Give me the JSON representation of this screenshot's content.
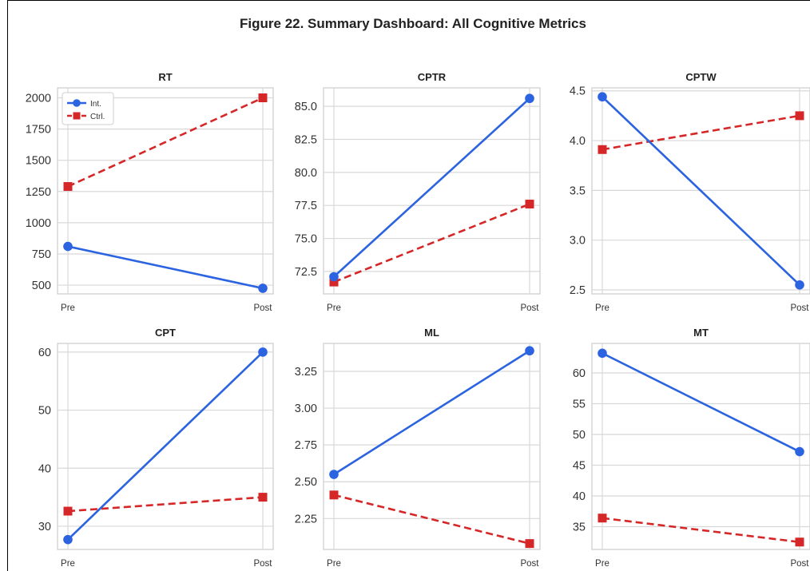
{
  "figure": {
    "title": "Figure 22. Summary Dashboard: All Cognitive Metrics"
  },
  "colors": {
    "intervention": "#2b63e0",
    "control": "#d62728",
    "grid": "#d8d8d8",
    "axis": "#cccccc"
  },
  "chart_data": [
    {
      "type": "line",
      "title": "RT",
      "categories": [
        "Pre",
        "Post"
      ],
      "ylim": [
        430,
        2080
      ],
      "yticks": [
        500,
        750,
        1000,
        1250,
        1500,
        1750,
        2000
      ],
      "ytick_labels": [
        "500",
        "750",
        "1000",
        "1250",
        "1500",
        "1750",
        "2000"
      ],
      "legend": {
        "placement": "upper-left",
        "entries": [
          "Int.",
          "Ctrl."
        ]
      },
      "series": [
        {
          "name": "Int.",
          "style": "solid-circle",
          "values": [
            810,
            475
          ]
        },
        {
          "name": "Ctrl.",
          "style": "dashed-square",
          "values": [
            1290,
            2000
          ]
        }
      ]
    },
    {
      "type": "line",
      "title": "CPTR",
      "categories": [
        "Pre",
        "Post"
      ],
      "ylim": [
        70.8,
        86.4
      ],
      "yticks": [
        72.5,
        75.0,
        77.5,
        80.0,
        82.5,
        85.0
      ],
      "ytick_labels": [
        "72.5",
        "75.0",
        "77.5",
        "80.0",
        "82.5",
        "85.0"
      ],
      "series": [
        {
          "name": "Int.",
          "style": "solid-circle",
          "values": [
            72.1,
            85.6
          ]
        },
        {
          "name": "Ctrl.",
          "style": "dashed-square",
          "values": [
            71.7,
            77.6
          ]
        }
      ]
    },
    {
      "type": "line",
      "title": "CPTW",
      "categories": [
        "Pre",
        "Post"
      ],
      "ylim": [
        2.46,
        4.53
      ],
      "yticks": [
        2.5,
        3.0,
        3.5,
        4.0,
        4.5
      ],
      "ytick_labels": [
        "2.5",
        "3.0",
        "3.5",
        "4.0",
        "4.5"
      ],
      "series": [
        {
          "name": "Int.",
          "style": "solid-circle",
          "values": [
            4.44,
            2.55
          ]
        },
        {
          "name": "Ctrl.",
          "style": "dashed-square",
          "values": [
            3.91,
            4.25
          ]
        }
      ]
    },
    {
      "type": "line",
      "title": "CPT",
      "categories": [
        "Pre",
        "Post"
      ],
      "ylim": [
        26.0,
        61.5
      ],
      "yticks": [
        30,
        40,
        50,
        60
      ],
      "ytick_labels": [
        "30",
        "40",
        "50",
        "60"
      ],
      "series": [
        {
          "name": "Int.",
          "style": "solid-circle",
          "values": [
            27.7,
            60.0
          ]
        },
        {
          "name": "Ctrl.",
          "style": "dashed-square",
          "values": [
            32.6,
            35.0
          ]
        }
      ]
    },
    {
      "type": "line",
      "title": "ML",
      "categories": [
        "Pre",
        "Post"
      ],
      "ylim": [
        2.04,
        3.44
      ],
      "yticks": [
        2.25,
        2.5,
        2.75,
        3.0,
        3.25
      ],
      "ytick_labels": [
        "2.25",
        "2.50",
        "2.75",
        "3.00",
        "3.25"
      ],
      "series": [
        {
          "name": "Int.",
          "style": "solid-circle",
          "values": [
            2.55,
            3.39
          ]
        },
        {
          "name": "Ctrl.",
          "style": "dashed-square",
          "values": [
            2.41,
            2.08
          ]
        }
      ]
    },
    {
      "type": "line",
      "title": "MT",
      "categories": [
        "Pre",
        "Post"
      ],
      "ylim": [
        31.3,
        64.8
      ],
      "yticks": [
        35,
        40,
        45,
        50,
        55,
        60
      ],
      "ytick_labels": [
        "35",
        "40",
        "45",
        "50",
        "55",
        "60"
      ],
      "series": [
        {
          "name": "Int.",
          "style": "solid-circle",
          "values": [
            63.2,
            47.2
          ]
        },
        {
          "name": "Ctrl.",
          "style": "dashed-square",
          "values": [
            36.4,
            32.5
          ]
        }
      ]
    }
  ]
}
